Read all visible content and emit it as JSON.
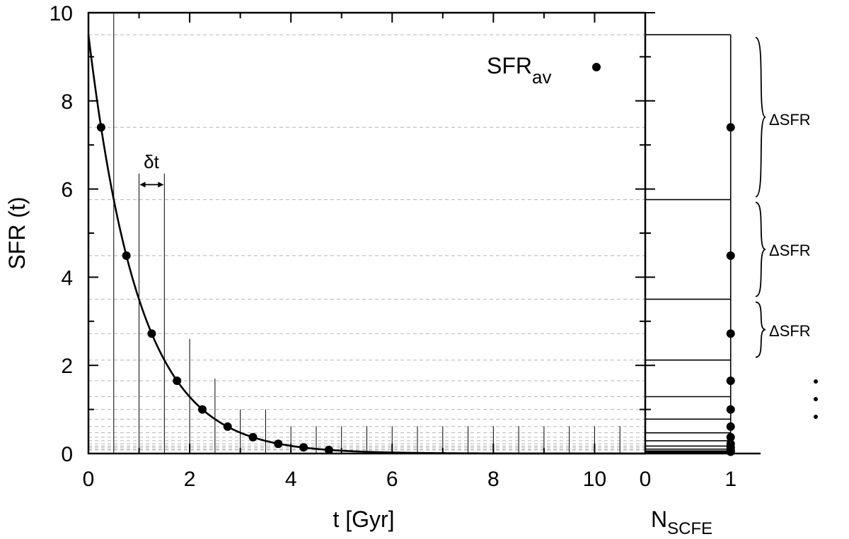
{
  "chart_data": [
    {
      "type": "line",
      "panel": "main",
      "xlabel": "t [Gyr]",
      "ylabel": "SFR (t)",
      "xlim": [
        0,
        11
      ],
      "ylim": [
        0,
        10
      ],
      "xticks": [
        0,
        2,
        4,
        6,
        8,
        10
      ],
      "yticks": [
        0,
        2,
        4,
        6,
        8,
        10
      ],
      "curve": {
        "function": "SFR(t) = 9.5 * exp(-t)",
        "amplitude": 9.5,
        "rate": 1.0,
        "x_range": [
          0,
          11
        ]
      },
      "series": [
        {
          "name": "SFR_av",
          "type": "scatter",
          "x": [
            0.25,
            0.75,
            1.25,
            1.75,
            2.25,
            2.75,
            3.25,
            3.75,
            4.25,
            4.75
          ],
          "y": [
            7.4,
            4.49,
            2.72,
            1.65,
            1.0,
            0.61,
            0.37,
            0.22,
            0.14,
            0.08
          ]
        }
      ],
      "bin_lines": {
        "x": [
          0.5,
          1.0,
          1.5,
          2.0,
          2.5,
          3.0,
          3.5,
          4.0,
          4.5,
          5.0,
          5.5,
          6.0,
          6.5,
          7.0,
          7.5,
          8.0,
          8.5,
          9.0,
          9.5,
          10.0,
          10.5
        ],
        "top": [
          10,
          6.35,
          6.35,
          2.6,
          1.7,
          1.0,
          1.0,
          0.62,
          0.62,
          0.62,
          0.62,
          0.62,
          0.62,
          0.62,
          0.62,
          0.62,
          0.62,
          0.62,
          0.62,
          0.62,
          0.62
        ]
      },
      "grid": {
        "horizontal_dashed": true,
        "y": [
          9.5,
          7.4,
          5.76,
          4.49,
          3.5,
          2.72,
          2.12,
          1.65,
          1.29,
          1.0,
          0.78,
          0.61,
          0.47,
          0.37,
          0.29,
          0.22,
          0.17,
          0.14,
          0.1,
          0.08
        ]
      },
      "annotations": {
        "delta_t": {
          "label": "δt",
          "x_from": 1.0,
          "x_to": 1.5,
          "y": 6.1
        },
        "legend": {
          "label_main": "SFR",
          "label_sub": "av",
          "position": "top-right"
        }
      }
    },
    {
      "type": "bar",
      "panel": "side",
      "xlabel_main": "N",
      "xlabel_sub": "SCFE",
      "xlim": [
        0,
        1.35
      ],
      "ylim": [
        0,
        10
      ],
      "xticks": [
        0,
        1
      ],
      "bins_upper_edges": [
        9.5,
        5.76,
        3.5,
        2.12,
        1.29,
        0.78,
        0.47,
        0.29,
        0.17,
        0.1,
        0.06,
        0.04,
        0.02
      ],
      "values": [
        1,
        1,
        1,
        1,
        1,
        1,
        1,
        1,
        1,
        1,
        1,
        1,
        1
      ],
      "points": {
        "x": 1,
        "y": [
          7.4,
          4.49,
          2.72,
          1.65,
          1.0,
          0.61,
          0.37,
          0.22,
          0.14,
          0.08
        ]
      },
      "braces": [
        {
          "label": "ΔSFR",
          "y_from": 5.76,
          "y_to": 9.5
        },
        {
          "label": "ΔSFR",
          "y_from": 3.5,
          "y_to": 5.76
        },
        {
          "label": "ΔSFR",
          "y_from": 2.12,
          "y_to": 3.5
        }
      ],
      "ellipsis": "⋮"
    }
  ]
}
